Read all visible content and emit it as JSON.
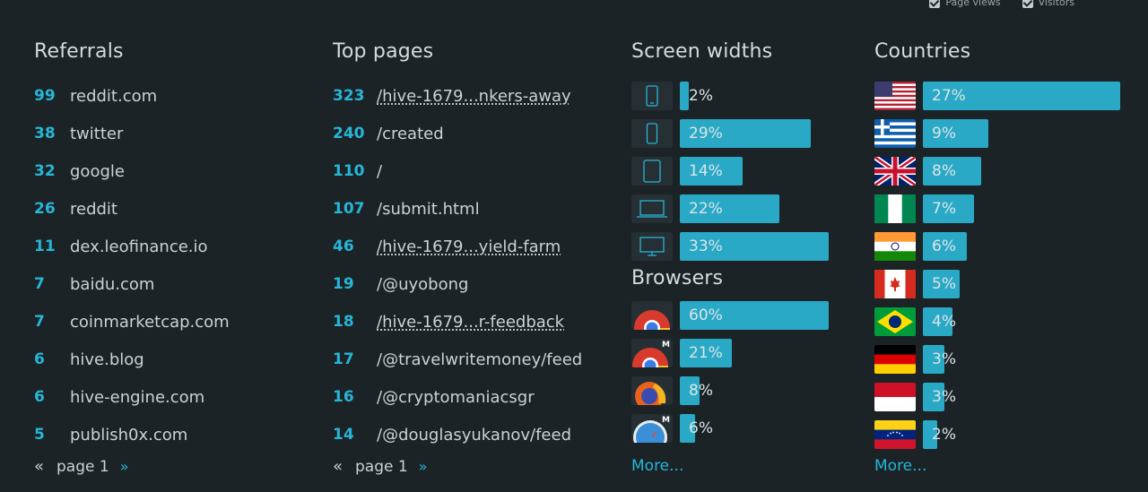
{
  "legend": {
    "page_views": "Page views",
    "visitors": "Visitors"
  },
  "referrals": {
    "title": "Referrals",
    "rows": [
      {
        "count": "99",
        "label": "reddit.com"
      },
      {
        "count": "38",
        "label": "twitter"
      },
      {
        "count": "32",
        "label": "google"
      },
      {
        "count": "26",
        "label": "reddit"
      },
      {
        "count": "11",
        "label": "dex.leofinance.io"
      },
      {
        "count": "7",
        "label": "baidu.com"
      },
      {
        "count": "7",
        "label": "coinmarketcap.com"
      },
      {
        "count": "6",
        "label": "hive.blog"
      },
      {
        "count": "6",
        "label": "hive-engine.com"
      },
      {
        "count": "5",
        "label": "publish0x.com"
      }
    ],
    "pager": {
      "prev": "«",
      "label": "page 1",
      "next": "»"
    }
  },
  "top_pages": {
    "title": "Top pages",
    "rows": [
      {
        "count": "323",
        "label": "/hive-1679...nkers-away"
      },
      {
        "count": "240",
        "label": "/created"
      },
      {
        "count": "110",
        "label": "/"
      },
      {
        "count": "107",
        "label": "/submit.html"
      },
      {
        "count": "46",
        "label": "/hive-1679...yield-farm"
      },
      {
        "count": "19",
        "label": "/@uyobong"
      },
      {
        "count": "18",
        "label": "/hive-1679...r-feedback"
      },
      {
        "count": "17",
        "label": "/@travelwritemoney/feed"
      },
      {
        "count": "16",
        "label": "/@cryptomaniacsgr"
      },
      {
        "count": "14",
        "label": "/@douglasyukanov/feed"
      }
    ],
    "pager": {
      "prev": "«",
      "label": "page 1",
      "next": "»"
    }
  },
  "screen_widths": {
    "title": "Screen widths",
    "rows": [
      {
        "icon": "phone-small-icon",
        "percent": 2,
        "label": "2%"
      },
      {
        "icon": "phone-icon",
        "percent": 29,
        "label": "29%"
      },
      {
        "icon": "tablet-icon",
        "percent": 14,
        "label": "14%"
      },
      {
        "icon": "laptop-icon",
        "percent": 22,
        "label": "22%"
      },
      {
        "icon": "desktop-icon",
        "percent": 33,
        "label": "33%"
      }
    ]
  },
  "browsers": {
    "title": "Browsers",
    "rows": [
      {
        "icon": "chrome-icon",
        "percent": 60,
        "label": "60%"
      },
      {
        "icon": "chrome-mobile-icon",
        "percent": 21,
        "label": "21%"
      },
      {
        "icon": "firefox-icon",
        "percent": 8,
        "label": "8%"
      },
      {
        "icon": "safari-mobile-icon",
        "percent": 6,
        "label": "6%"
      }
    ],
    "more": "More..."
  },
  "countries": {
    "title": "Countries",
    "rows": [
      {
        "flag": "us-flag-icon",
        "percent": 27,
        "label": "27%"
      },
      {
        "flag": "greece-flag-icon",
        "percent": 9,
        "label": "9%"
      },
      {
        "flag": "uk-flag-icon",
        "percent": 8,
        "label": "8%"
      },
      {
        "flag": "nigeria-flag-icon",
        "percent": 7,
        "label": "7%"
      },
      {
        "flag": "india-flag-icon",
        "percent": 6,
        "label": "6%"
      },
      {
        "flag": "canada-flag-icon",
        "percent": 5,
        "label": "5%"
      },
      {
        "flag": "brazil-flag-icon",
        "percent": 4,
        "label": "4%"
      },
      {
        "flag": "germany-flag-icon",
        "percent": 3,
        "label": "3%"
      },
      {
        "flag": "indonesia-flag-icon",
        "percent": 3,
        "label": "3%"
      },
      {
        "flag": "venezuela-flag-icon",
        "percent": 2,
        "label": "2%"
      }
    ],
    "more": "More..."
  },
  "colors": {
    "accent": "#27b6d6",
    "bar": "#2aa9c7",
    "background": "#1b2327"
  }
}
